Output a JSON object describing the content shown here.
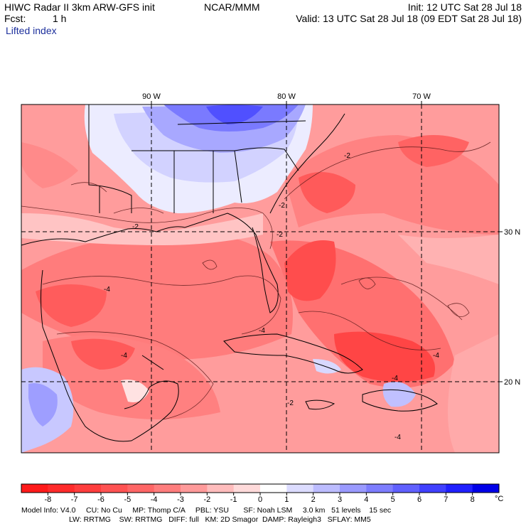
{
  "header": {
    "title_left": "HIWC Radar II 3km ARW-GFS init",
    "org": "NCAR/MMM",
    "init": "Init: 12 UTC Sat 28 Jul 18",
    "fcst_label": "Fcst:",
    "fcst_value": "1 h",
    "valid": "Valid: 13 UTC Sat 28 Jul 18 (09 EDT Sat 28 Jul 18)",
    "field": "Lifted index"
  },
  "map": {
    "lon_labels": [
      "90 W",
      "80 W",
      "70 W"
    ],
    "lat_labels": [
      "30 N",
      "20 N"
    ],
    "contour_labels": [
      "-2",
      "-2",
      "-2",
      "-2",
      "-4",
      "-4",
      "-4",
      "-4",
      "-2",
      "-4",
      "-4"
    ]
  },
  "colorbar": {
    "ticks": [
      "-8",
      "-7",
      "-6",
      "-5",
      "-4",
      "-3",
      "-2",
      "-1",
      "0",
      "1",
      "2",
      "3",
      "4",
      "5",
      "6",
      "7",
      "8"
    ],
    "unit": "°C",
    "colors": [
      "#ff1a1a",
      "#ff2b2b",
      "#ff3d3d",
      "#ff5252",
      "#ff6666",
      "#ff7d7d",
      "#ff9a9a",
      "#ffbcbc",
      "#ffdada",
      "#ffffff",
      "#dcdcff",
      "#bcbcff",
      "#9a9aff",
      "#7d7dff",
      "#6060ff",
      "#4040ff",
      "#2020ff",
      "#0000e8"
    ]
  },
  "footer": {
    "line1": "Model Info: V4.0     CU: No Cu     MP: Thomp C/A     PBL: YSU       SF: Noah LSM     3.0 km   51 levels    15 sec",
    "line2": "LW: RRTMG    SW: RRTMG   DIFF: full   KM: 2D Smagor  DAMP: Rayleigh3   SFLAY: MM5"
  }
}
